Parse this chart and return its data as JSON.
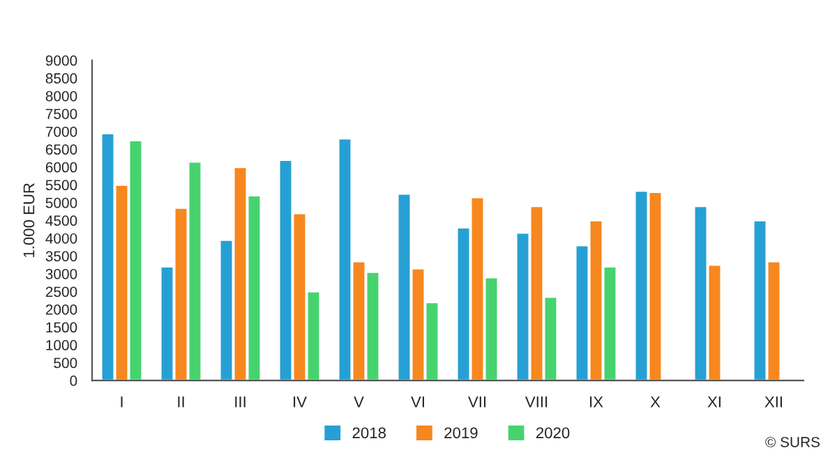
{
  "chart_data": {
    "type": "bar",
    "ylabel": "1.000 EUR",
    "categories": [
      "I",
      "II",
      "III",
      "IV",
      "V",
      "VI",
      "VII",
      "VIII",
      "IX",
      "X",
      "XI",
      "XII"
    ],
    "series": [
      {
        "name": "2018",
        "color": "#26a0d4",
        "values": [
          6950,
          3200,
          3950,
          6200,
          6800,
          5250,
          4300,
          4150,
          3800,
          5330,
          4900,
          4500
        ]
      },
      {
        "name": "2019",
        "color": "#f7871f",
        "values": [
          5500,
          4850,
          6000,
          4700,
          3350,
          3150,
          5150,
          4900,
          4500,
          5300,
          3250,
          3350
        ]
      },
      {
        "name": "2020",
        "color": "#46d36e",
        "values": [
          6750,
          6150,
          5200,
          2500,
          3050,
          2200,
          2900,
          2350,
          3200,
          null,
          null,
          null
        ]
      }
    ],
    "ylim": [
      0,
      9000
    ],
    "yticks": [
      0,
      500,
      1000,
      1500,
      2000,
      2500,
      3000,
      3500,
      4000,
      4500,
      5000,
      5500,
      6000,
      6500,
      7000,
      7500,
      8000,
      8500,
      9000
    ],
    "grid": false,
    "legend": "bottom",
    "annotations": [
      "© SURS"
    ]
  }
}
